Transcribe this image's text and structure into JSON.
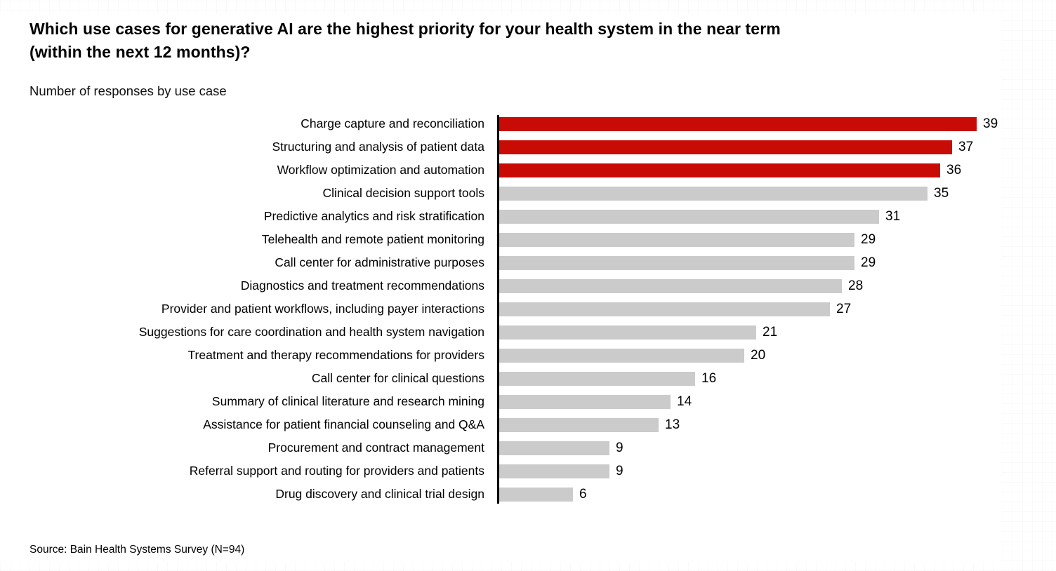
{
  "title": {
    "line1": "Which use cases for generative AI are the highest priority for your health system in the near term",
    "line2": "(within the next 12 months)?"
  },
  "subtitle": "Number of responses by use case",
  "source": "Source: Bain Health Systems Survey (N=94)",
  "colors": {
    "highlight": "#C90B05",
    "default": "#CBCBCB",
    "axis": "#000000",
    "text": "#000000"
  },
  "chart_data": {
    "type": "bar",
    "orientation": "horizontal",
    "title": "Which use cases for generative AI are the highest priority for your health system in the near term (within the next 12 months)?",
    "subtitle": "Number of responses by use case",
    "xlabel": "",
    "ylabel": "",
    "xlim": [
      0,
      39
    ],
    "grid": false,
    "legend": false,
    "value_labels_shown": true,
    "highlight_count": 3,
    "categories": [
      "Charge capture and reconciliation",
      "Structuring and analysis of patient data",
      "Workflow optimization and automation",
      "Clinical decision support tools",
      "Predictive analytics and risk stratification",
      "Telehealth and remote patient monitoring",
      "Call center for administrative purposes",
      "Diagnostics and treatment recommendations",
      "Provider and patient workflows, including payer interactions",
      "Suggestions for care coordination and health system navigation",
      "Treatment and therapy recommendations for providers",
      "Call center for clinical questions",
      "Summary of clinical literature and research mining",
      "Assistance for patient financial counseling and Q&A",
      "Procurement and contract management",
      "Referral support and routing for providers and patients",
      "Drug discovery and clinical trial design"
    ],
    "values": [
      39,
      37,
      36,
      35,
      31,
      29,
      29,
      28,
      27,
      21,
      20,
      16,
      14,
      13,
      9,
      9,
      6
    ]
  }
}
